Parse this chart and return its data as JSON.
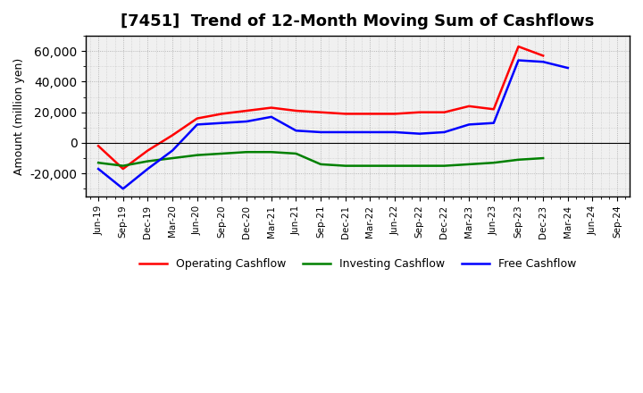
{
  "title": "[7451]  Trend of 12-Month Moving Sum of Cashflows",
  "ylabel": "Amount (million yen)",
  "xlabels": [
    "Jun-19",
    "Sep-19",
    "Dec-19",
    "Mar-20",
    "Jun-20",
    "Sep-20",
    "Dec-20",
    "Mar-21",
    "Jun-21",
    "Sep-21",
    "Dec-21",
    "Mar-22",
    "Jun-22",
    "Sep-22",
    "Dec-22",
    "Mar-23",
    "Jun-23",
    "Sep-23",
    "Dec-23",
    "Mar-24",
    "Jun-24",
    "Sep-24"
  ],
  "operating_cashflow": [
    -2000,
    -17000,
    -5000,
    5000,
    16000,
    19000,
    21000,
    23000,
    21000,
    20000,
    19000,
    19000,
    19000,
    20000,
    20000,
    24000,
    22000,
    63000,
    57000,
    null,
    null,
    null
  ],
  "investing_cashflow": [
    -13000,
    -15000,
    -12000,
    -10000,
    -8000,
    -7000,
    -6000,
    -6000,
    -7000,
    -14000,
    -15000,
    -15000,
    -15000,
    -15000,
    -15000,
    -14000,
    -13000,
    -11000,
    -10000,
    null,
    null,
    null
  ],
  "free_cashflow": [
    -17000,
    -30000,
    -17000,
    -5000,
    12000,
    13000,
    14000,
    17000,
    8000,
    7000,
    7000,
    7000,
    7000,
    6000,
    7000,
    12000,
    13000,
    54000,
    53000,
    49000,
    null,
    null
  ],
  "operating_color": "#FF0000",
  "investing_color": "#008000",
  "free_color": "#0000FF",
  "ylim": [
    -35000,
    70000
  ],
  "yticks": [
    -20000,
    0,
    20000,
    40000,
    60000
  ],
  "plot_bg_color": "#F0F0F0",
  "fig_bg_color": "#FFFFFF",
  "grid_color": "#888888",
  "title_fontsize": 13,
  "legend_labels": [
    "Operating Cashflow",
    "Investing Cashflow",
    "Free Cashflow"
  ]
}
